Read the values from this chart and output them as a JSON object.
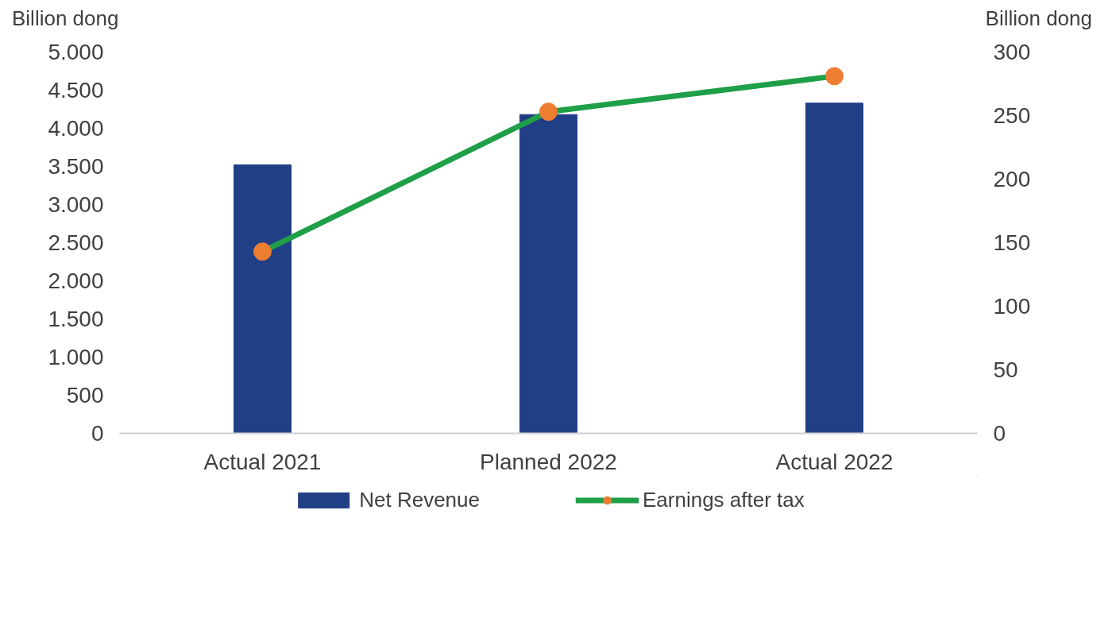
{
  "chart_data": {
    "type": "bar",
    "ylabel": "Billion dong",
    "y2label": "Billion dong",
    "categories": [
      "Actual 2021",
      "Planned 2022",
      "Actual 2022"
    ],
    "series": [
      {
        "name": "Net Revenue",
        "color": "#203f86",
        "values": [
          3520,
          4180,
          4330
        ]
      },
      {
        "name": "Earnings after tax",
        "type": "line",
        "axis": "y2",
        "color": "#1e9f48",
        "marker": "circle",
        "colors": [
          "#ed7d31",
          "#ed7d31",
          "#ed7d31"
        ],
        "values": [
          143,
          253,
          281
        ]
      }
    ],
    "ylim": [
      0,
      5000
    ],
    "yticks": [
      0,
      500,
      {
        "value": 1000,
        "label": "1.000"
      },
      {
        "value": 1500,
        "label": "1.500"
      },
      {
        "value": 2000,
        "label": "2.000"
      },
      {
        "value": 2500,
        "label": "2.500"
      },
      {
        "value": 3000,
        "label": "3.000"
      },
      {
        "value": 3500,
        "label": "3.500"
      },
      {
        "value": 4000,
        "label": "4.000"
      },
      {
        "value": 4500,
        "label": "4.500"
      },
      {
        "value": 5000,
        "label": "5.000"
      }
    ],
    "y2lim": [
      0,
      300
    ],
    "y2ticks": [
      0,
      50,
      100,
      150,
      200,
      250,
      300
    ],
    "grid": false,
    "legend": "bottom"
  }
}
